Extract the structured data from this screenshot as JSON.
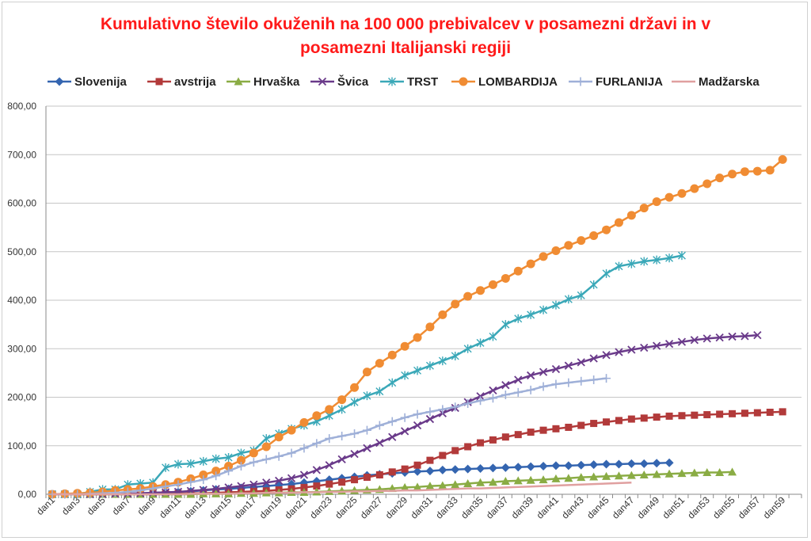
{
  "title_line1": "Kumulativno število okuženih na 100 000 prebivalcev v posamezni državi in v",
  "title_line2": "posamezni Italijanski regiji",
  "chart_data": {
    "type": "line",
    "y_ticks": [
      "0,00",
      "100,00",
      "200,00",
      "300,00",
      "400,00",
      "500,00",
      "600,00",
      "700,00",
      "800,00"
    ],
    "ylim": [
      0,
      800
    ],
    "x_tick_labels": [
      "dan1",
      "dan3",
      "dan5",
      "dan7",
      "dan9",
      "dan11",
      "dan13",
      "dan15",
      "dan17",
      "dan19",
      "dan21",
      "dan23",
      "dan25",
      "dan27",
      "dan29",
      "dan31",
      "dan33",
      "dan35",
      "dan37",
      "dan39",
      "dan41",
      "dan43",
      "dan45",
      "dan47",
      "dan49",
      "dan51",
      "dan53",
      "dan55",
      "dan57",
      "dan59"
    ],
    "grid": true,
    "legend_position": "top",
    "series": [
      {
        "name": "Slovenija",
        "color": "#3465b0",
        "marker": "diamond",
        "values": [
          0,
          0,
          0,
          0,
          1,
          1,
          1,
          2,
          3,
          4,
          5,
          6,
          8,
          10,
          11,
          13,
          15,
          17,
          19,
          21,
          24,
          27,
          30,
          33,
          36,
          39,
          41,
          43,
          45,
          47,
          48,
          50,
          51,
          52,
          53,
          54,
          55,
          56,
          57,
          58,
          59,
          59,
          60,
          61,
          62,
          62,
          63,
          63,
          64,
          65
        ]
      },
      {
        "name": "avstrija",
        "color": "#b23a3a",
        "marker": "square",
        "values": [
          0,
          0,
          0,
          0,
          0,
          0,
          0,
          0,
          0,
          1,
          1,
          2,
          2,
          3,
          4,
          5,
          6,
          7,
          9,
          11,
          14,
          17,
          21,
          25,
          30,
          35,
          40,
          46,
          52,
          60,
          70,
          80,
          90,
          98,
          106,
          112,
          118,
          123,
          128,
          132,
          135,
          138,
          142,
          146,
          149,
          152,
          155,
          157,
          159,
          161,
          162,
          163,
          164,
          165,
          166,
          167,
          168,
          169,
          170
        ]
      },
      {
        "name": "Hrvaška",
        "color": "#8aac44",
        "marker": "triangle",
        "values": [
          0,
          0,
          0,
          0,
          0,
          0,
          0,
          0,
          0,
          0,
          0,
          0,
          1,
          1,
          1,
          2,
          2,
          3,
          3,
          4,
          4,
          5,
          6,
          7,
          8,
          9,
          10,
          12,
          14,
          15,
          17,
          18,
          20,
          22,
          24,
          25,
          27,
          28,
          29,
          30,
          32,
          33,
          35,
          36,
          37,
          38,
          39,
          40,
          41,
          42,
          43,
          44,
          45,
          45,
          46
        ]
      },
      {
        "name": "Švica",
        "color": "#6a3a8a",
        "marker": "x",
        "values": [
          0,
          0,
          0,
          0,
          0,
          1,
          1,
          2,
          3,
          4,
          5,
          7,
          9,
          11,
          14,
          17,
          20,
          24,
          28,
          33,
          40,
          50,
          60,
          72,
          83,
          95,
          106,
          118,
          130,
          142,
          155,
          167,
          178,
          190,
          202,
          214,
          225,
          236,
          245,
          252,
          258,
          265,
          272,
          280,
          287,
          293,
          298,
          302,
          306,
          310,
          314,
          318,
          321,
          323,
          325,
          326,
          328
        ]
      },
      {
        "name": "TRST",
        "color": "#3aa8b8",
        "marker": "star",
        "values": [
          0,
          0,
          0,
          5,
          10,
          10,
          20,
          22,
          24,
          55,
          62,
          63,
          68,
          73,
          76,
          85,
          90,
          115,
          125,
          135,
          142,
          150,
          162,
          175,
          190,
          203,
          212,
          230,
          245,
          255,
          265,
          275,
          285,
          300,
          312,
          325,
          350,
          362,
          370,
          380,
          390,
          402,
          410,
          432,
          455,
          470,
          475,
          480,
          483,
          487,
          492
        ]
      },
      {
        "name": "LOMBARDIJA",
        "color": "#f08c33",
        "marker": "circle",
        "values": [
          0,
          1,
          2,
          3,
          5,
          8,
          10,
          12,
          16,
          20,
          25,
          32,
          40,
          48,
          58,
          70,
          85,
          98,
          118,
          132,
          148,
          162,
          175,
          195,
          220,
          252,
          270,
          287,
          305,
          323,
          345,
          370,
          392,
          408,
          420,
          432,
          445,
          460,
          475,
          490,
          502,
          513,
          523,
          533,
          545,
          560,
          575,
          590,
          603,
          612,
          620,
          630,
          640,
          652,
          660,
          665,
          666,
          668,
          690
        ]
      },
      {
        "name": "FURLANIJA",
        "color": "#9fb0d8",
        "marker": "plus",
        "values": [
          0,
          0,
          0,
          1,
          2,
          3,
          5,
          8,
          12,
          16,
          20,
          25,
          30,
          38,
          48,
          58,
          66,
          72,
          78,
          85,
          95,
          105,
          115,
          120,
          125,
          132,
          142,
          150,
          158,
          165,
          170,
          175,
          180,
          187,
          193,
          198,
          205,
          210,
          215,
          222,
          227,
          230,
          233,
          236,
          239
        ]
      },
      {
        "name": "Madžarska",
        "color": "#e0a0a0",
        "marker": "none",
        "values": [
          0,
          0,
          0,
          0,
          0,
          0,
          0,
          0,
          0,
          0,
          0,
          1,
          1,
          1,
          1,
          2,
          2,
          3,
          3,
          3,
          4,
          4,
          5,
          5,
          6,
          6,
          7,
          7,
          8,
          8,
          9,
          10,
          11,
          12,
          12,
          13,
          14,
          15,
          16,
          17,
          18,
          19,
          20,
          21,
          22,
          23,
          24
        ]
      }
    ]
  }
}
